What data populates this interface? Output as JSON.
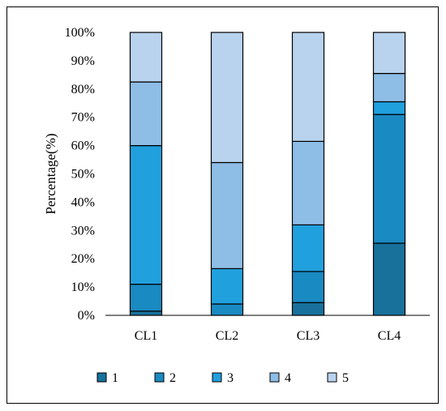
{
  "chart_data": {
    "type": "bar",
    "stacked": true,
    "categories": [
      "CL1",
      "CL2",
      "CL3",
      "CL4"
    ],
    "series": [
      {
        "name": "1",
        "color": "#17719b",
        "values": [
          1.5,
          0,
          4.5,
          25.5
        ]
      },
      {
        "name": "2",
        "color": "#1a8ac2",
        "values": [
          9.5,
          4,
          11,
          45.5
        ]
      },
      {
        "name": "3",
        "color": "#21a0de",
        "values": [
          49,
          12.5,
          16.5,
          4.5
        ]
      },
      {
        "name": "4",
        "color": "#8ebde6",
        "values": [
          22.5,
          37.5,
          29.5,
          10
        ]
      },
      {
        "name": "5",
        "color": "#b9d3ee",
        "values": [
          17.5,
          46,
          38.5,
          14.5
        ]
      }
    ],
    "ylabel": "Percentage(%)",
    "xlabel": "",
    "ylim": [
      0,
      100
    ],
    "yticks": [
      "0%",
      "10%",
      "20%",
      "30%",
      "40%",
      "50%",
      "60%",
      "70%",
      "80%",
      "90%",
      "100%"
    ],
    "grid": false,
    "legend_position": "bottom"
  }
}
